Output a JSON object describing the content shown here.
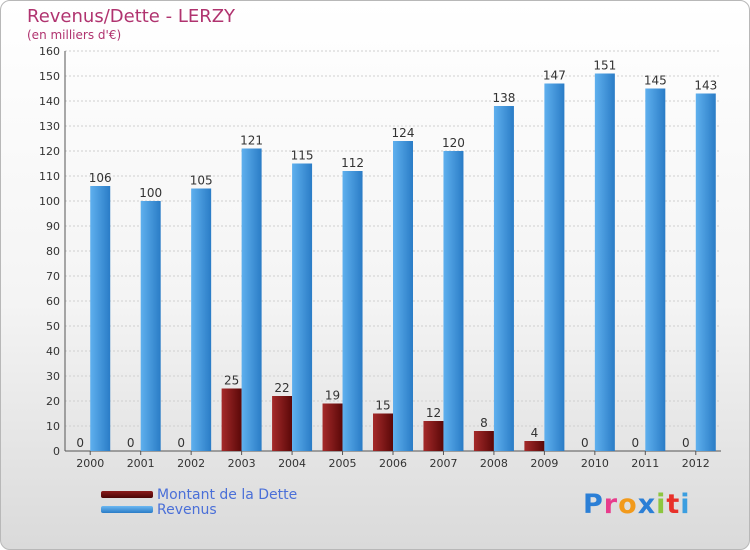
{
  "title": "Revenus/Dette - LERZY",
  "subtitle": "(en milliers d'€)",
  "logo": {
    "text": "Proxiti",
    "letter_colors": [
      "#2b7fd6",
      "#e83c8c",
      "#f29a1b",
      "#2b7fd6",
      "#8dc63f",
      "#e8312a",
      "#3b9ee0"
    ]
  },
  "legend": [
    {
      "label": "Montant de la Dette",
      "color": "#6b0e0e"
    },
    {
      "label": "Revenus",
      "color": "#3d8fd6"
    }
  ],
  "colors": {
    "debt_light": "#a52a2a",
    "debt_dark": "#5a0808",
    "rev_light": "#5fb0ee",
    "rev_dark": "#2a7cc6",
    "grid": "#cfcfcf",
    "text": "#333333"
  },
  "chart_data": {
    "type": "bar",
    "categories": [
      "2000",
      "2001",
      "2002",
      "2003",
      "2004",
      "2005",
      "2006",
      "2007",
      "2008",
      "2009",
      "2010",
      "2011",
      "2012"
    ],
    "series": [
      {
        "name": "Montant de la Dette",
        "values": [
          0,
          0,
          0,
          25,
          22,
          19,
          15,
          12,
          8,
          4,
          0,
          0,
          0
        ]
      },
      {
        "name": "Revenus",
        "values": [
          106,
          100,
          105,
          121,
          115,
          112,
          124,
          120,
          138,
          147,
          151,
          145,
          143
        ]
      }
    ],
    "ylim": [
      0,
      160
    ],
    "ytick_step": 10,
    "grid": true,
    "legend_position": "bottom-left"
  }
}
